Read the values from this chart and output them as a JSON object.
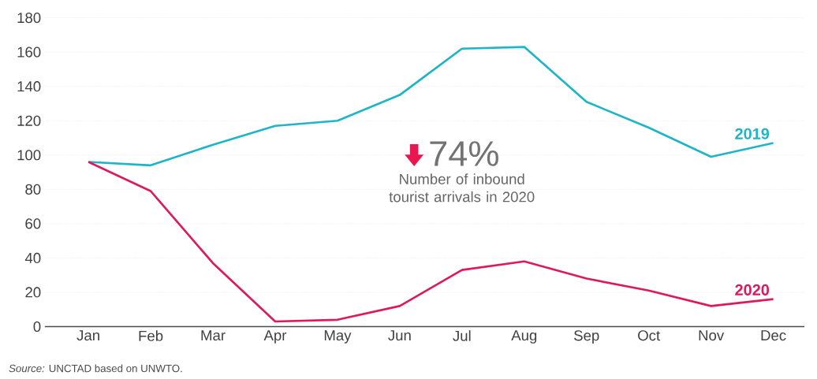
{
  "chart_data": {
    "type": "line",
    "categories": [
      "Jan",
      "Feb",
      "Mar",
      "Apr",
      "May",
      "Jun",
      "Jul",
      "Aug",
      "Sep",
      "Oct",
      "Nov",
      "Dec"
    ],
    "series": [
      {
        "name": "2019",
        "color": "#1fb5c6",
        "values": [
          96,
          94,
          106,
          117,
          120,
          135,
          162,
          163,
          131,
          116,
          99,
          107
        ]
      },
      {
        "name": "2020",
        "color": "#dc1a5c",
        "values": [
          96,
          79,
          37,
          3,
          4,
          12,
          33,
          38,
          28,
          21,
          12,
          16
        ]
      }
    ],
    "ylim": [
      0,
      180
    ],
    "yticks": [
      0,
      20,
      40,
      60,
      80,
      100,
      120,
      140,
      160,
      180
    ],
    "grid": "y",
    "legend": false,
    "marker": "none",
    "line_style": "solid",
    "annotations": [
      "74%",
      "Number of inbound tourist arrivals in 2020",
      "*Source:* UNCTAD based on UNWTO."
    ]
  }
}
